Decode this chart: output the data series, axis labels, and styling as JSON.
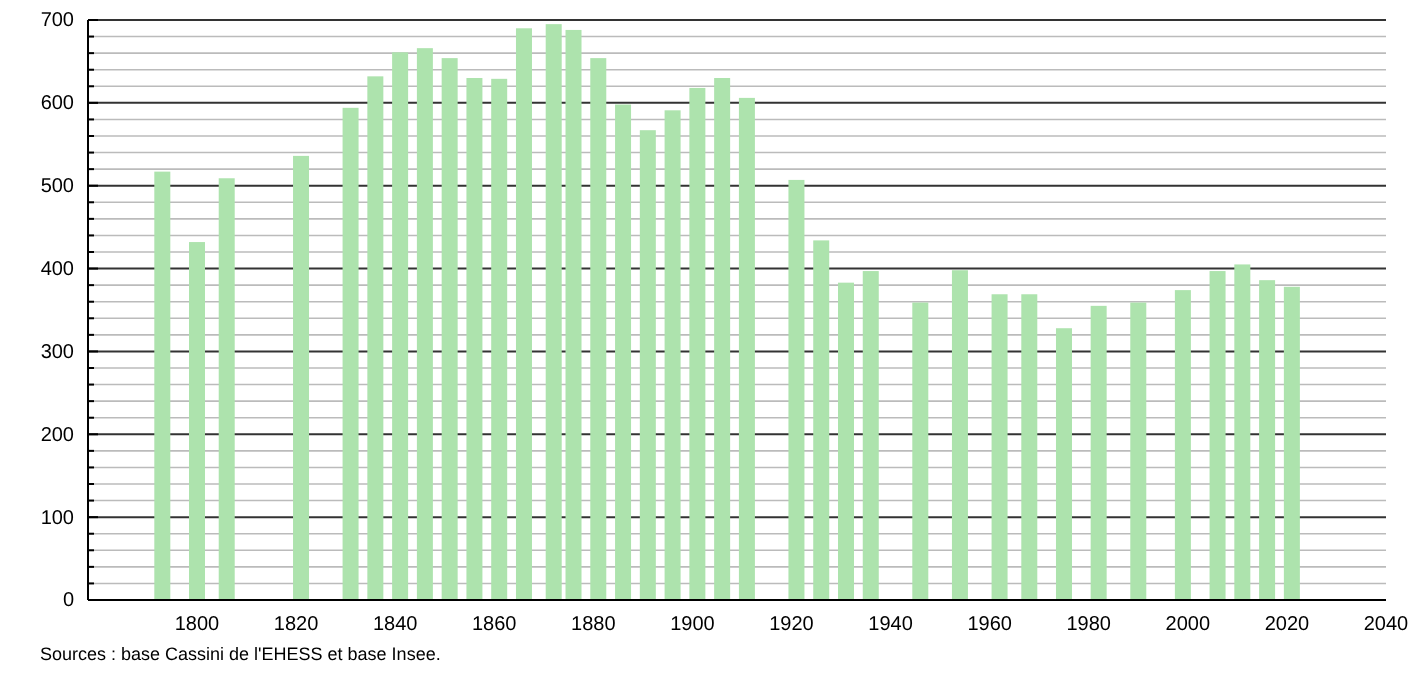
{
  "chart_data": {
    "type": "bar",
    "x": [
      1793,
      1800,
      1806,
      1821,
      1831,
      1836,
      1841,
      1846,
      1851,
      1856,
      1861,
      1866,
      1872,
      1876,
      1881,
      1886,
      1891,
      1896,
      1901,
      1906,
      1911,
      1921,
      1926,
      1931,
      1936,
      1946,
      1954,
      1962,
      1968,
      1975,
      1982,
      1990,
      1999,
      2006,
      2011,
      2016,
      2021
    ],
    "values": [
      517,
      432,
      509,
      536,
      594,
      632,
      661,
      666,
      654,
      630,
      629,
      690,
      695,
      688,
      654,
      598,
      567,
      591,
      618,
      630,
      606,
      507,
      434,
      383,
      397,
      359,
      398,
      369,
      369,
      328,
      355,
      359,
      374,
      397,
      405,
      386,
      378
    ],
    "color": "#ade3ad",
    "xlim": [
      1778,
      2040
    ],
    "xticks": [
      1800,
      1820,
      1840,
      1860,
      1880,
      1900,
      1920,
      1940,
      1960,
      1980,
      2000,
      2020,
      2040
    ],
    "ylim": [
      0,
      700
    ],
    "yticks": [
      0,
      {
        "value": 20,
        "label": null
      },
      {
        "value": 40,
        "label": null
      },
      {
        "value": 60,
        "label": null
      },
      {
        "value": 80,
        "label": null
      },
      100,
      {
        "value": 120,
        "label": null
      },
      {
        "value": 140,
        "label": null
      },
      {
        "value": 160,
        "label": null
      },
      {
        "value": 180,
        "label": null
      },
      200,
      {
        "value": 220,
        "label": null
      },
      {
        "value": 240,
        "label": null
      },
      {
        "value": 260,
        "label": null
      },
      {
        "value": 280,
        "label": null
      },
      300,
      {
        "value": 320,
        "label": null
      },
      {
        "value": 340,
        "label": null
      },
      {
        "value": 360,
        "label": null
      },
      {
        "value": 380,
        "label": null
      },
      400,
      {
        "value": 420,
        "label": null
      },
      {
        "value": 440,
        "label": null
      },
      {
        "value": 460,
        "label": null
      },
      {
        "value": 480,
        "label": null
      },
      500,
      {
        "value": 520,
        "label": null
      },
      {
        "value": 540,
        "label": null
      },
      {
        "value": 560,
        "label": null
      },
      {
        "value": 580,
        "label": null
      },
      600,
      {
        "value": 620,
        "label": null
      },
      {
        "value": 640,
        "label": null
      },
      {
        "value": 660,
        "label": null
      },
      {
        "value": 680,
        "label": null
      },
      700
    ],
    "grid": "y",
    "annotations": [
      "Sources : base Cassini de l'EHESS et base Insee."
    ]
  }
}
